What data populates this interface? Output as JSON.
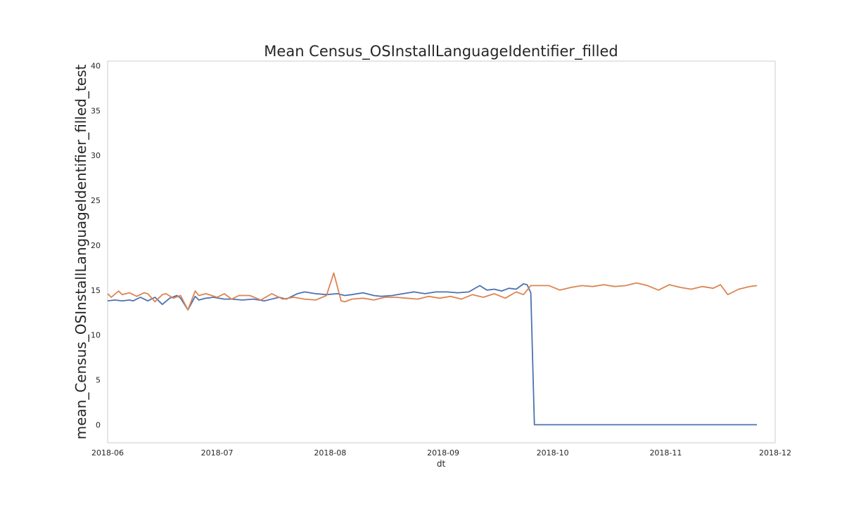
{
  "chart_data": {
    "type": "line",
    "title": "Mean Census_OSInstallLanguageIdentifier_filled",
    "xlabel": "dt",
    "ylabel": "mean_Census_OSInstallLanguageIdentifier_filled_test",
    "xlim": [
      "2018-06-01",
      "2018-12-01"
    ],
    "ylim": [
      -2,
      40.5
    ],
    "x_ticks": [
      "2018-06",
      "2018-07",
      "2018-08",
      "2018-09",
      "2018-10",
      "2018-11",
      "2018-12"
    ],
    "x_tick_dates": [
      "2018-06-01",
      "2018-07-01",
      "2018-08-01",
      "2018-09-01",
      "2018-10-01",
      "2018-11-01",
      "2018-12-01"
    ],
    "y_ticks": [
      0,
      5,
      10,
      15,
      20,
      25,
      30,
      35,
      40
    ],
    "grid": false,
    "series": [
      {
        "color": "#4c72b0",
        "x": [
          "2018-06-01",
          "2018-06-03",
          "2018-06-05",
          "2018-06-07",
          "2018-06-08",
          "2018-06-10",
          "2018-06-12",
          "2018-06-14",
          "2018-06-16",
          "2018-06-18",
          "2018-06-20",
          "2018-06-21",
          "2018-06-23",
          "2018-06-25",
          "2018-06-26",
          "2018-06-28",
          "2018-06-30",
          "2018-07-03",
          "2018-07-05",
          "2018-07-08",
          "2018-07-11",
          "2018-07-14",
          "2018-07-18",
          "2018-07-20",
          "2018-07-23",
          "2018-07-25",
          "2018-07-28",
          "2018-07-31",
          "2018-08-03",
          "2018-08-05",
          "2018-08-07",
          "2018-08-10",
          "2018-08-13",
          "2018-08-15",
          "2018-08-18",
          "2018-08-21",
          "2018-08-24",
          "2018-08-27",
          "2018-08-30",
          "2018-09-02",
          "2018-09-05",
          "2018-09-08",
          "2018-09-11",
          "2018-09-13",
          "2018-09-15",
          "2018-09-17",
          "2018-09-19",
          "2018-09-21",
          "2018-09-23",
          "2018-09-24",
          "2018-09-25",
          "2018-09-26",
          "2018-09-27",
          "2018-10-10",
          "2018-10-25",
          "2018-11-10",
          "2018-11-26"
        ],
        "y": [
          13.8,
          13.9,
          13.8,
          13.9,
          13.8,
          14.2,
          13.8,
          14.2,
          13.4,
          14.1,
          14.4,
          14.1,
          12.8,
          14.3,
          13.9,
          14.1,
          14.2,
          14.0,
          14.0,
          13.9,
          14.0,
          13.8,
          14.2,
          14.0,
          14.6,
          14.8,
          14.6,
          14.5,
          14.6,
          14.4,
          14.5,
          14.7,
          14.4,
          14.3,
          14.4,
          14.6,
          14.8,
          14.6,
          14.8,
          14.8,
          14.7,
          14.8,
          15.5,
          15.0,
          15.1,
          14.9,
          15.2,
          15.1,
          15.7,
          15.6,
          14.7,
          0.0,
          0.0,
          0.0,
          0.0,
          0.0,
          0.0
        ]
      },
      {
        "color": "#dd8452",
        "x": [
          "2018-06-01",
          "2018-06-02",
          "2018-06-04",
          "2018-06-05",
          "2018-06-07",
          "2018-06-09",
          "2018-06-11",
          "2018-06-12",
          "2018-06-14",
          "2018-06-16",
          "2018-06-17",
          "2018-06-19",
          "2018-06-21",
          "2018-06-23",
          "2018-06-25",
          "2018-06-26",
          "2018-06-28",
          "2018-07-01",
          "2018-07-03",
          "2018-07-05",
          "2018-07-07",
          "2018-07-10",
          "2018-07-13",
          "2018-07-16",
          "2018-07-19",
          "2018-07-22",
          "2018-07-25",
          "2018-07-28",
          "2018-07-31",
          "2018-08-02",
          "2018-08-04",
          "2018-08-05",
          "2018-08-07",
          "2018-08-10",
          "2018-08-13",
          "2018-08-16",
          "2018-08-19",
          "2018-08-22",
          "2018-08-25",
          "2018-08-28",
          "2018-08-31",
          "2018-09-03",
          "2018-09-06",
          "2018-09-09",
          "2018-09-12",
          "2018-09-15",
          "2018-09-18",
          "2018-09-21",
          "2018-09-23",
          "2018-09-25",
          "2018-09-26",
          "2018-09-30",
          "2018-10-03",
          "2018-10-06",
          "2018-10-09",
          "2018-10-12",
          "2018-10-15",
          "2018-10-18",
          "2018-10-21",
          "2018-10-24",
          "2018-10-27",
          "2018-10-30",
          "2018-11-02",
          "2018-11-05",
          "2018-11-08",
          "2018-11-11",
          "2018-11-14",
          "2018-11-16",
          "2018-11-18",
          "2018-11-21",
          "2018-11-24",
          "2018-11-26"
        ],
        "y": [
          14.6,
          14.2,
          14.9,
          14.5,
          14.7,
          14.3,
          14.7,
          14.6,
          13.7,
          14.5,
          14.6,
          14.1,
          14.4,
          12.8,
          14.9,
          14.4,
          14.6,
          14.2,
          14.6,
          14.0,
          14.4,
          14.4,
          13.9,
          14.6,
          14.0,
          14.2,
          14.0,
          13.9,
          14.4,
          16.9,
          13.8,
          13.7,
          14.0,
          14.1,
          13.9,
          14.2,
          14.2,
          14.1,
          14.0,
          14.3,
          14.1,
          14.3,
          14.0,
          14.5,
          14.2,
          14.6,
          14.1,
          14.8,
          14.5,
          15.5,
          15.5,
          15.5,
          15.0,
          15.3,
          15.5,
          15.4,
          15.6,
          15.4,
          15.5,
          15.8,
          15.5,
          15.0,
          15.6,
          15.3,
          15.1,
          15.4,
          15.2,
          15.6,
          14.5,
          15.1,
          15.4,
          15.5
        ]
      }
    ]
  }
}
